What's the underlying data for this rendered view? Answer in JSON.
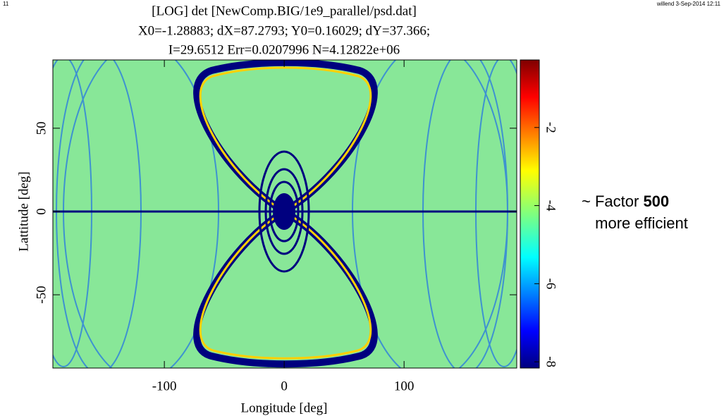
{
  "chart_data": {
    "type": "heatmap",
    "title": [
      "[LOG] det [NewComp.BIG/1e9_parallel/psd.dat]",
      "X0=-1.28883; dX=87.2793; Y0=0.16029; dY=37.366;",
      "I=29.6512 Err=0.0207996 N=4.12822e+06"
    ],
    "xlabel": "Longitude [deg]",
    "ylabel": "Lattitude [deg]",
    "xlim": [
      -193,
      194
    ],
    "ylim": [
      -94,
      91
    ],
    "xticks": [
      -100,
      0,
      100
    ],
    "yticks": [
      -50,
      0,
      50
    ],
    "colorbar": {
      "lim": [
        -8.16,
        -0.27
      ],
      "ticks": [
        -8,
        -6,
        -4,
        -2
      ]
    }
  },
  "page_label": "11",
  "stamp": "willend  3-Sep-2014 12:11",
  "annotation": {
    "prefix": "~ Factor",
    "bold": "500",
    "line2": "more efficient"
  }
}
